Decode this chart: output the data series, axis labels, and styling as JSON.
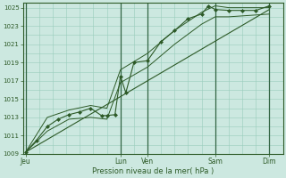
{
  "xlabel": "Pression niveau de la mer( hPa )",
  "background_color": "#cce8e0",
  "grid_color_minor": "#99ccbb",
  "grid_color_major": "#99ccbb",
  "vline_color": "#336644",
  "line_color": "#2d5a27",
  "ylim": [
    1009,
    1025.5
  ],
  "yticks": [
    1009,
    1011,
    1013,
    1015,
    1017,
    1019,
    1021,
    1023,
    1025
  ],
  "day_labels": [
    "Jeu",
    "Lun",
    "Ven",
    "Sam",
    "Dim"
  ],
  "day_positions": [
    0.0,
    3.5,
    4.5,
    7.0,
    9.0
  ],
  "xmin": -0.1,
  "xmax": 9.5,
  "main_line": [
    [
      0.0,
      1009.2
    ],
    [
      0.4,
      1010.5
    ],
    [
      0.8,
      1012.0
    ],
    [
      1.2,
      1012.8
    ],
    [
      1.6,
      1013.3
    ],
    [
      2.0,
      1013.6
    ],
    [
      2.4,
      1014.0
    ],
    [
      2.8,
      1013.2
    ],
    [
      3.0,
      1013.2
    ],
    [
      3.3,
      1013.3
    ],
    [
      3.5,
      1017.5
    ],
    [
      3.7,
      1015.7
    ],
    [
      4.0,
      1019.0
    ],
    [
      4.5,
      1019.2
    ],
    [
      5.0,
      1021.3
    ],
    [
      5.5,
      1022.5
    ],
    [
      6.0,
      1023.8
    ],
    [
      6.5,
      1024.3
    ],
    [
      6.75,
      1025.2
    ],
    [
      7.0,
      1024.8
    ],
    [
      7.5,
      1024.7
    ],
    [
      8.0,
      1024.7
    ],
    [
      8.5,
      1024.7
    ],
    [
      9.0,
      1025.2
    ]
  ],
  "upper_line": [
    [
      0.0,
      1009.2
    ],
    [
      0.8,
      1013.0
    ],
    [
      1.6,
      1013.8
    ],
    [
      2.4,
      1014.3
    ],
    [
      3.0,
      1014.0
    ],
    [
      3.5,
      1018.2
    ],
    [
      4.5,
      1020.0
    ],
    [
      5.5,
      1022.5
    ],
    [
      6.5,
      1024.5
    ],
    [
      7.0,
      1025.2
    ],
    [
      7.5,
      1025.0
    ],
    [
      8.5,
      1025.0
    ],
    [
      9.0,
      1025.0
    ]
  ],
  "lower_line": [
    [
      0.0,
      1009.2
    ],
    [
      0.8,
      1011.5
    ],
    [
      1.6,
      1012.8
    ],
    [
      2.4,
      1013.0
    ],
    [
      3.0,
      1012.8
    ],
    [
      3.5,
      1016.8
    ],
    [
      4.5,
      1018.5
    ],
    [
      5.5,
      1021.0
    ],
    [
      6.5,
      1023.2
    ],
    [
      7.0,
      1024.0
    ],
    [
      7.5,
      1024.0
    ],
    [
      8.5,
      1024.2
    ],
    [
      9.0,
      1024.3
    ]
  ],
  "trend_line": [
    [
      0.0,
      1009.2
    ],
    [
      9.0,
      1024.8
    ]
  ]
}
